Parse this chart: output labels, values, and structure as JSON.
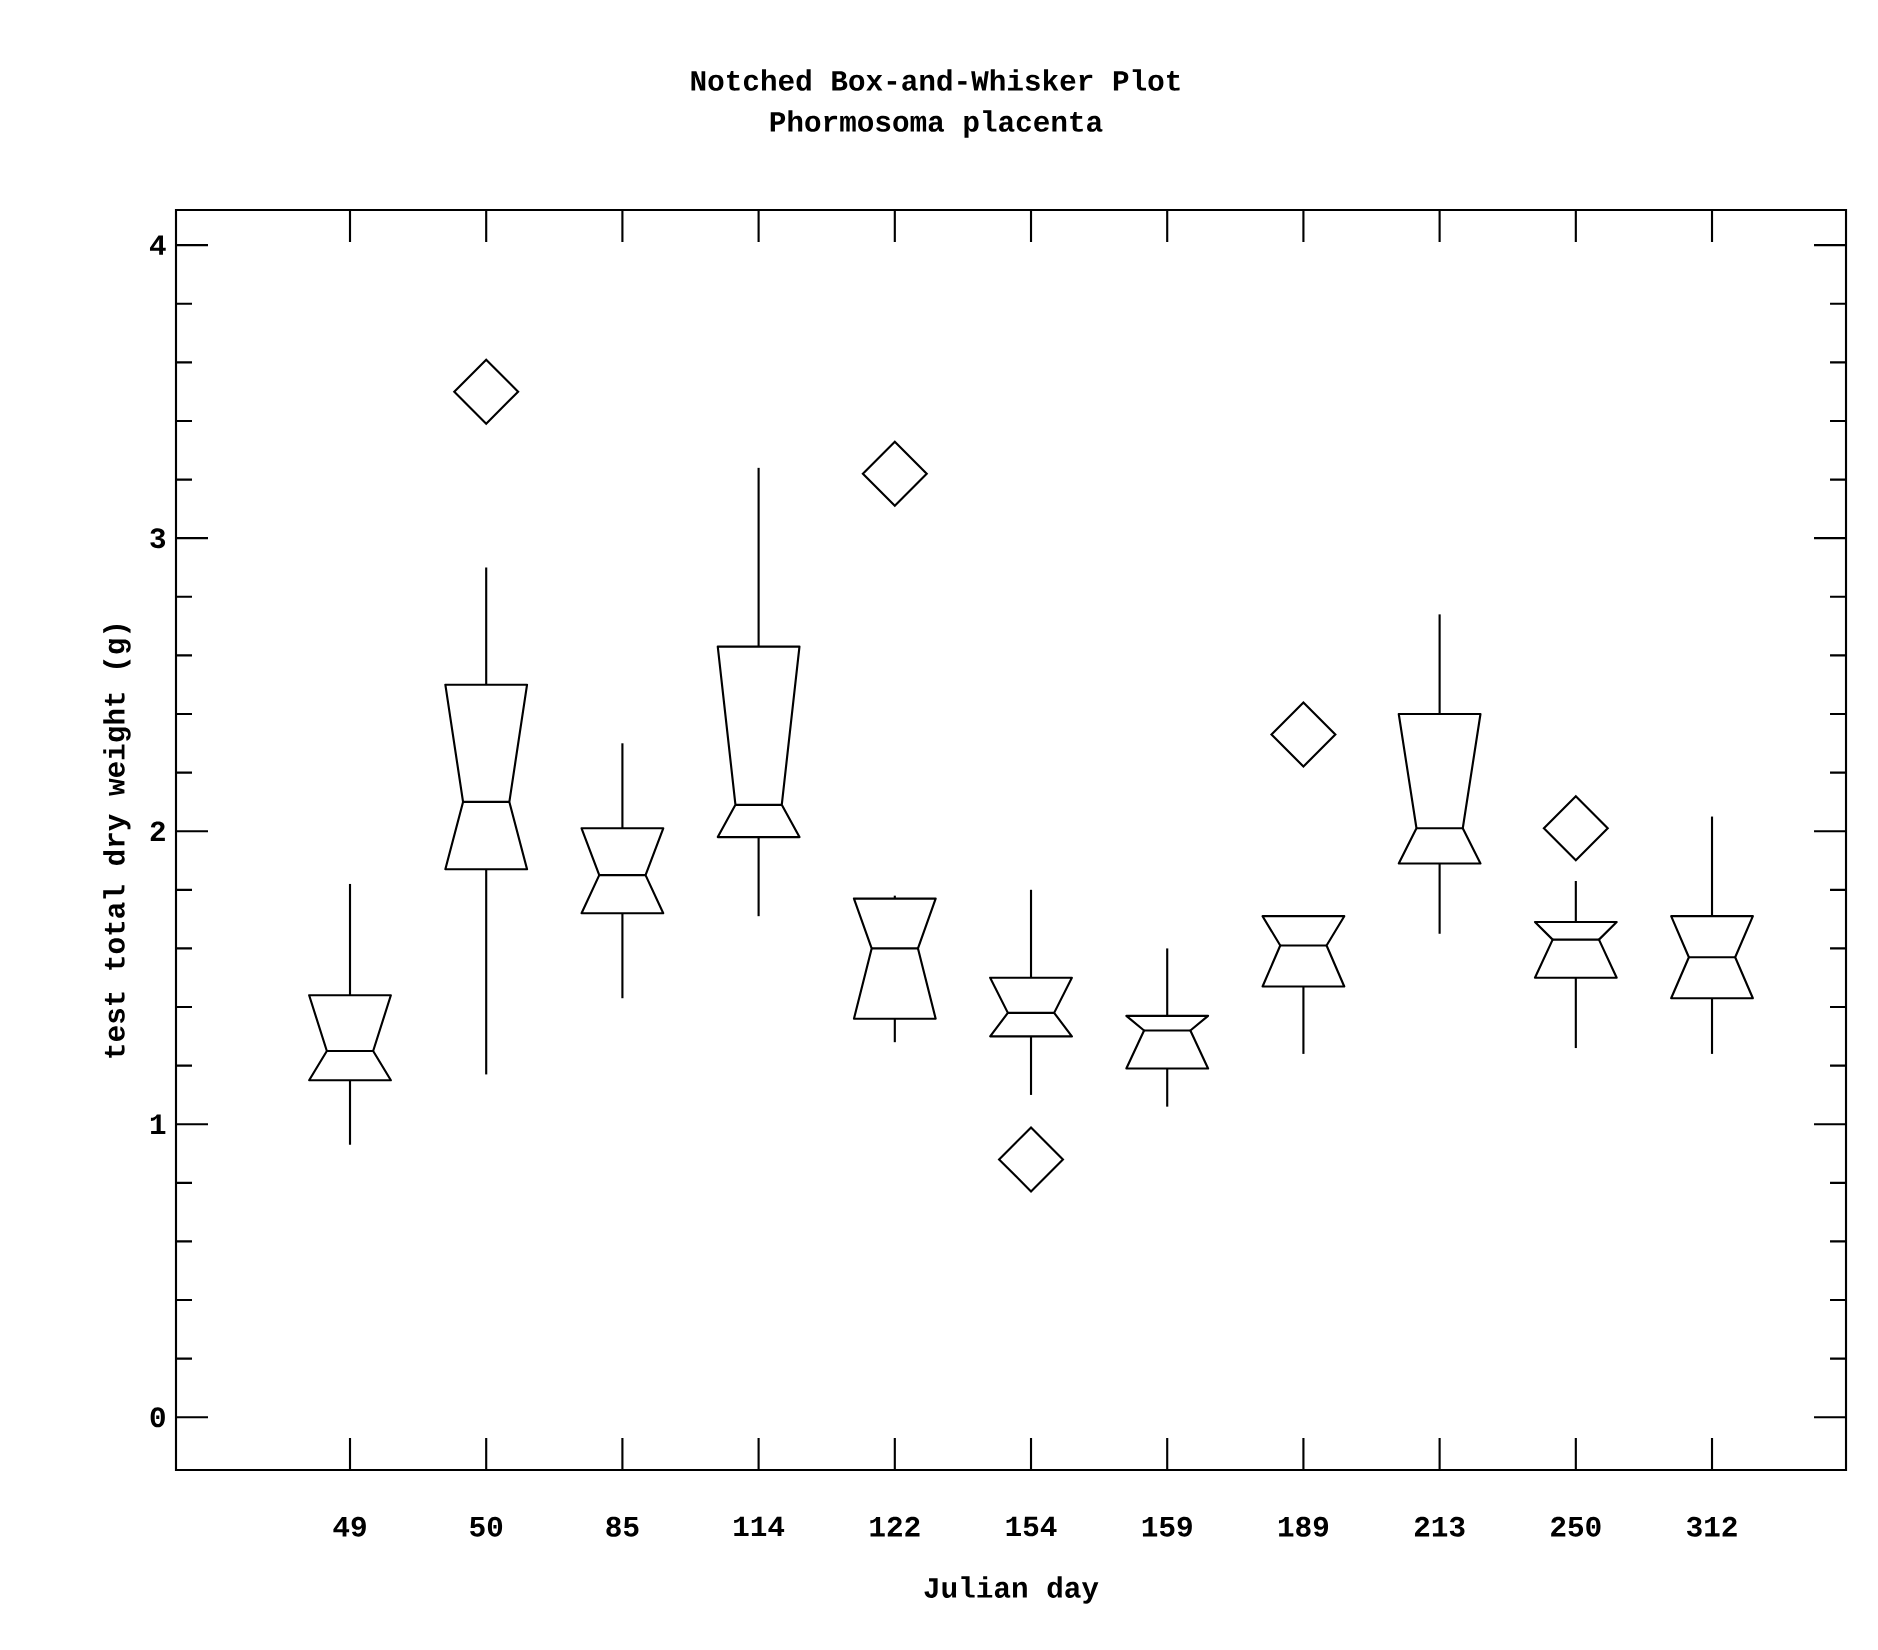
{
  "chart_data": {
    "type": "box",
    "title": "Notched Box-and-Whisker Plot",
    "subtitle": "Phormosoma placenta",
    "xlabel": "Julian day",
    "ylabel": "test total dry weight (g)",
    "categories": [
      "49",
      "50",
      "85",
      "114",
      "122",
      "154",
      "159",
      "189",
      "213",
      "250",
      "312"
    ],
    "boxes": [
      {
        "low": 0.93,
        "q1": 1.15,
        "median": 1.25,
        "q3": 1.44,
        "high": 1.82
      },
      {
        "low": 1.17,
        "q1": 1.87,
        "median": 2.1,
        "q3": 2.5,
        "high": 2.9,
        "outliers": [
          3.5
        ]
      },
      {
        "low": 1.43,
        "q1": 1.72,
        "median": 1.85,
        "q3": 2.01,
        "high": 2.3
      },
      {
        "low": 1.71,
        "q1": 1.98,
        "median": 2.09,
        "q3": 2.63,
        "high": 3.24
      },
      {
        "low": 1.28,
        "q1": 1.36,
        "median": 1.6,
        "q3": 1.77,
        "high": 1.78,
        "outliers": [
          3.22
        ]
      },
      {
        "low": 1.1,
        "q1": 1.3,
        "median": 1.38,
        "q3": 1.5,
        "high": 1.8,
        "outliers": [
          0.88
        ]
      },
      {
        "low": 1.06,
        "q1": 1.19,
        "median": 1.32,
        "q3": 1.37,
        "high": 1.6
      },
      {
        "low": 1.24,
        "q1": 1.47,
        "median": 1.61,
        "q3": 1.71,
        "high": 1.71,
        "outliers": [
          2.33
        ]
      },
      {
        "low": 1.65,
        "q1": 1.89,
        "median": 2.01,
        "q3": 2.4,
        "high": 2.74
      },
      {
        "low": 1.26,
        "q1": 1.5,
        "median": 1.63,
        "q3": 1.69,
        "high": 1.83,
        "outliers": [
          2.01
        ]
      },
      {
        "low": 1.24,
        "q1": 1.43,
        "median": 1.57,
        "q3": 1.71,
        "high": 2.05
      }
    ],
    "marker": "diamond",
    "ylim": [
      -0.18,
      4.12
    ],
    "yticks": [
      0,
      1,
      2,
      3,
      4
    ]
  }
}
